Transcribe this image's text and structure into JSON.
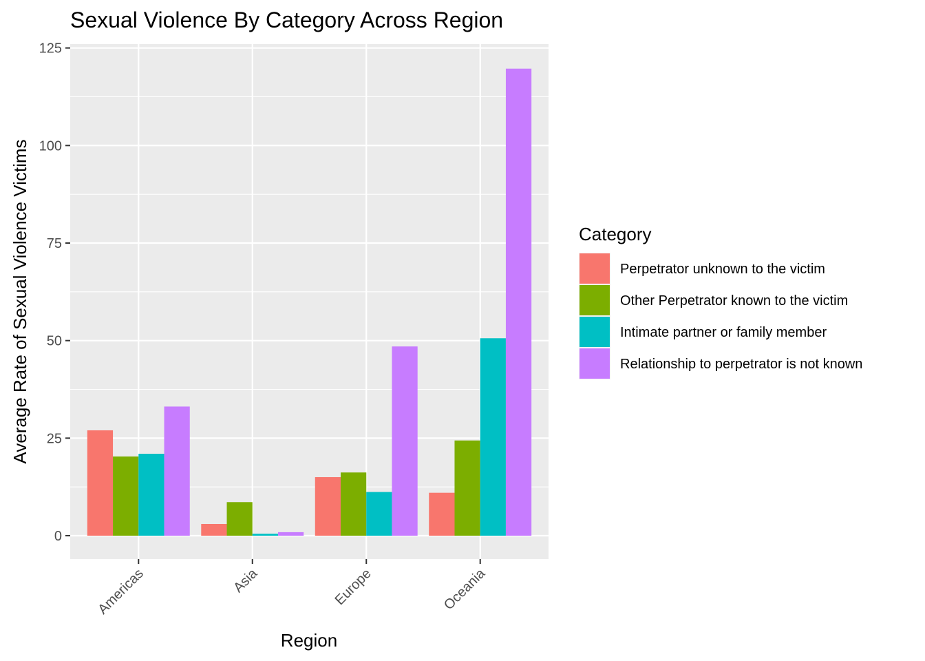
{
  "chart_data": {
    "type": "bar",
    "title": "Sexual Violence By Category Across Region",
    "xlabel": "Region",
    "ylabel": "Average Rate of Sexual Violence Victims",
    "categories": [
      "Americas",
      "Asia",
      "Europe",
      "Oceania"
    ],
    "ylim": [
      -6,
      126
    ],
    "yticks": [
      0,
      25,
      50,
      75,
      100,
      125
    ],
    "grid": true,
    "legend": {
      "title": "Category",
      "position": "right"
    },
    "series": [
      {
        "name": "Perpetrator unknown to the victim",
        "color": "#F8766D",
        "values": [
          27.0,
          3.0,
          15.0,
          11.0
        ]
      },
      {
        "name": "Other Perpetrator known to the victim",
        "color": "#7CAE00",
        "values": [
          20.3,
          8.6,
          16.2,
          24.4
        ]
      },
      {
        "name": "Intimate partner or family member",
        "color": "#00BFC4",
        "values": [
          21.0,
          0.5,
          11.2,
          50.6
        ]
      },
      {
        "name": "Relationship to perpetrator is not known",
        "color": "#C77CFF",
        "values": [
          33.1,
          0.9,
          48.5,
          119.7
        ]
      }
    ]
  }
}
